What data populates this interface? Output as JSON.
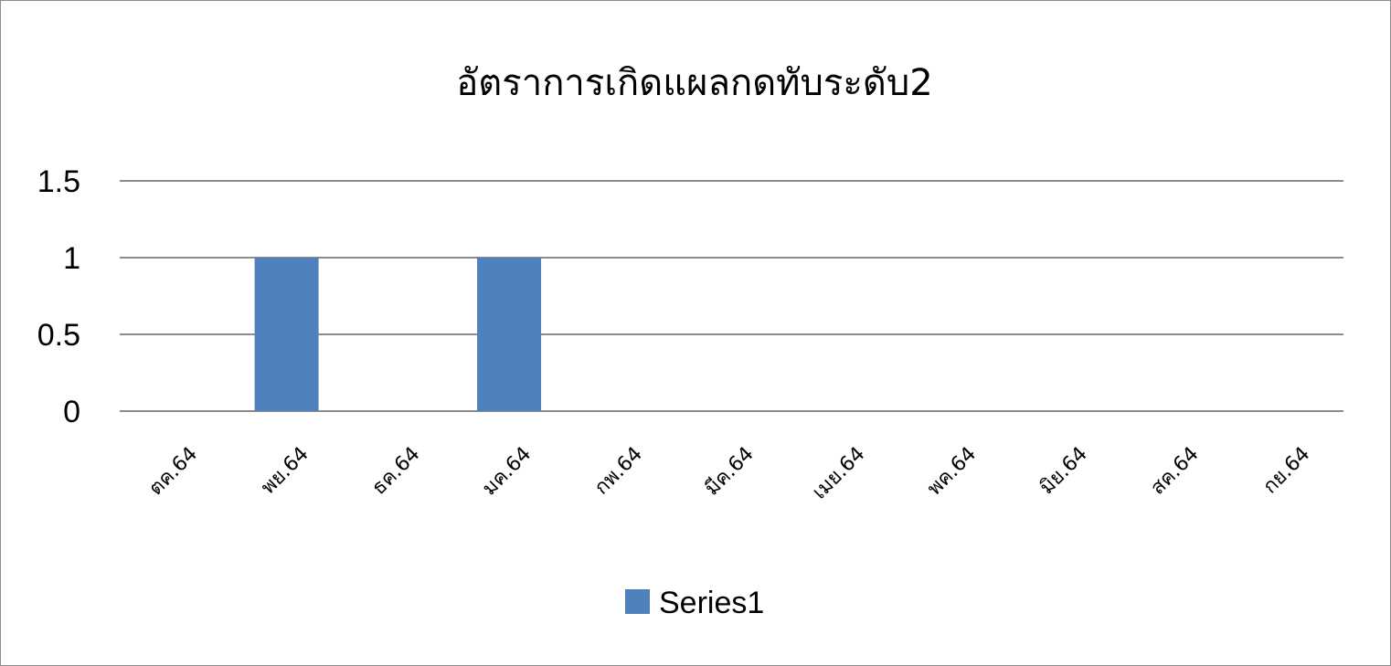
{
  "chart_data": {
    "type": "bar",
    "title": "อัตราการเกิดแผลกดทับระดับ2",
    "categories": [
      "ตค.64",
      "พย.64",
      "ธค.64",
      "มค.64",
      "กพ.64",
      "มีค.64",
      "เมย.64",
      "พค.64",
      "มิย.64",
      "สค.64",
      "กย.64"
    ],
    "yticks": [
      "0",
      "0.5",
      "1",
      "1.5"
    ],
    "ylim": [
      0,
      1.5
    ],
    "grid": true,
    "legend_position": "bottom",
    "series": [
      {
        "name": "Series1",
        "color": "#4f81bd",
        "values": [
          0,
          1,
          0,
          1,
          0,
          0,
          0,
          0,
          0,
          0,
          0
        ]
      }
    ]
  }
}
